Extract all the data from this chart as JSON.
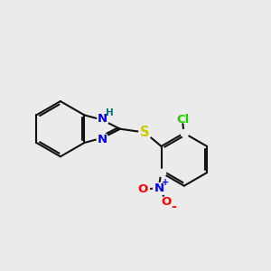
{
  "background_color": "#ebebeb",
  "bond_color": "#111111",
  "bond_lw": 1.5,
  "atom_colors": {
    "N": "#0000ee",
    "S": "#cccc00",
    "Cl": "#22cc00",
    "O": "#ff0000",
    "H": "#007070",
    "plus": "#0000ee",
    "minus": "#ff0000"
  },
  "font_size": 9.5,
  "font_size_h": 7.5,
  "font_size_charge": 7.0
}
